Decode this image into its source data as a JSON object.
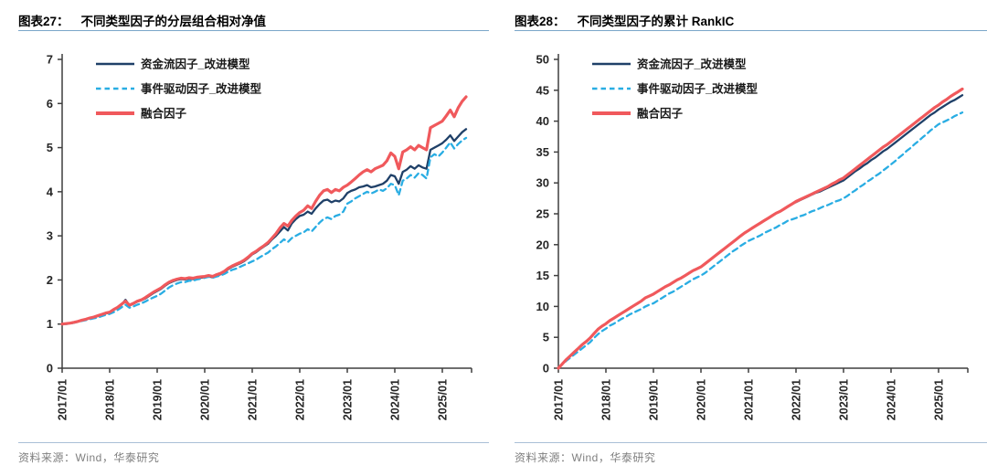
{
  "page": {
    "background": "#ffffff"
  },
  "colors": {
    "navy": "#1F4068",
    "cyan": "#29ADE3",
    "red": "#F0595C",
    "axis": "#3F3F3F",
    "rule_blue": "#7AA6C9",
    "source_gray": "#7F7F7F"
  },
  "figures": [
    {
      "title_prefix": "图表27：",
      "title": "不同类型因子的分层组合相对净值",
      "source": "资料来源：Wind，华泰研究"
    },
    {
      "title_prefix": "图表28：",
      "title": "不同类型因子的累计 RankIC",
      "source": "资料来源：Wind，华泰研究"
    }
  ],
  "chart_data": [
    {
      "type": "line",
      "title": "不同类型因子的分层组合相对净值",
      "x_start": "2017/01",
      "x_end": "2025/07",
      "x_freq": "monthly",
      "x_tick_labels": [
        "2017/01",
        "2018/01",
        "2019/01",
        "2020/01",
        "2021/01",
        "2022/01",
        "2023/01",
        "2024/01",
        "2025/01"
      ],
      "ylim": [
        0,
        7
      ],
      "ytick_step": 1,
      "grid": false,
      "legend_position": "top-left-inside",
      "series": [
        {
          "name": "资金流因子_改进模型",
          "color": "#1F4068",
          "dash": "solid",
          "values": [
            1.0,
            1.01,
            1.02,
            1.04,
            1.06,
            1.09,
            1.11,
            1.13,
            1.15,
            1.18,
            1.21,
            1.24,
            1.26,
            1.32,
            1.37,
            1.44,
            1.55,
            1.42,
            1.46,
            1.51,
            1.54,
            1.58,
            1.64,
            1.7,
            1.75,
            1.8,
            1.87,
            1.93,
            1.97,
            2.0,
            2.02,
            2.01,
            2.03,
            2.02,
            2.04,
            2.05,
            2.06,
            2.08,
            2.06,
            2.1,
            2.13,
            2.18,
            2.25,
            2.3,
            2.34,
            2.38,
            2.43,
            2.5,
            2.58,
            2.63,
            2.7,
            2.76,
            2.82,
            2.92,
            3.0,
            3.1,
            3.2,
            3.12,
            3.28,
            3.38,
            3.45,
            3.48,
            3.55,
            3.5,
            3.62,
            3.72,
            3.8,
            3.82,
            3.76,
            3.8,
            3.78,
            3.85,
            3.97,
            4.02,
            4.05,
            4.1,
            4.12,
            4.15,
            4.1,
            4.12,
            4.15,
            4.18,
            4.25,
            4.38,
            4.35,
            4.18,
            4.45,
            4.5,
            4.58,
            4.52,
            4.6,
            4.55,
            4.52,
            4.95,
            5.0,
            5.05,
            5.1,
            5.18,
            5.28,
            5.15,
            5.25,
            5.35,
            5.42
          ]
        },
        {
          "name": "事件驱动因子_改进模型",
          "color": "#29ADE3",
          "dash": "dashed",
          "values": [
            1.0,
            1.0,
            1.01,
            1.03,
            1.05,
            1.07,
            1.09,
            1.11,
            1.13,
            1.15,
            1.18,
            1.21,
            1.23,
            1.27,
            1.32,
            1.38,
            1.44,
            1.37,
            1.4,
            1.44,
            1.47,
            1.51,
            1.56,
            1.6,
            1.64,
            1.69,
            1.76,
            1.83,
            1.88,
            1.92,
            1.95,
            1.95,
            1.98,
            1.98,
            2.01,
            2.03,
            2.05,
            2.07,
            2.05,
            2.08,
            2.1,
            2.14,
            2.19,
            2.23,
            2.26,
            2.3,
            2.34,
            2.38,
            2.42,
            2.46,
            2.52,
            2.57,
            2.62,
            2.7,
            2.76,
            2.84,
            2.92,
            2.86,
            2.95,
            3.0,
            3.05,
            3.08,
            3.15,
            3.1,
            3.2,
            3.3,
            3.38,
            3.42,
            3.38,
            3.45,
            3.48,
            3.55,
            3.73,
            3.78,
            3.85,
            3.9,
            3.95,
            4.0,
            3.96,
            4.0,
            4.05,
            4.02,
            4.08,
            4.18,
            4.15,
            3.92,
            4.25,
            4.3,
            4.38,
            4.32,
            4.42,
            4.38,
            4.3,
            4.78,
            4.85,
            4.8,
            4.89,
            5.0,
            5.12,
            4.98,
            5.08,
            5.16,
            5.22
          ]
        },
        {
          "name": "融合因子",
          "color": "#F0595C",
          "dash": "solid",
          "values": [
            1.0,
            1.01,
            1.02,
            1.04,
            1.06,
            1.09,
            1.11,
            1.14,
            1.16,
            1.19,
            1.22,
            1.25,
            1.27,
            1.33,
            1.38,
            1.45,
            1.52,
            1.43,
            1.47,
            1.52,
            1.55,
            1.6,
            1.66,
            1.72,
            1.77,
            1.82,
            1.89,
            1.95,
            1.99,
            2.02,
            2.04,
            2.03,
            2.05,
            2.04,
            2.06,
            2.07,
            2.08,
            2.1,
            2.08,
            2.12,
            2.15,
            2.2,
            2.27,
            2.32,
            2.36,
            2.4,
            2.45,
            2.52,
            2.6,
            2.65,
            2.72,
            2.78,
            2.85,
            2.95,
            3.05,
            3.18,
            3.28,
            3.22,
            3.35,
            3.45,
            3.53,
            3.58,
            3.68,
            3.62,
            3.78,
            3.92,
            4.02,
            4.05,
            3.98,
            4.05,
            4.02,
            4.1,
            4.15,
            4.22,
            4.3,
            4.38,
            4.45,
            4.5,
            4.45,
            4.52,
            4.56,
            4.6,
            4.7,
            4.88,
            4.8,
            4.52,
            4.9,
            4.95,
            5.02,
            4.95,
            5.05,
            5.0,
            4.95,
            5.45,
            5.5,
            5.55,
            5.6,
            5.72,
            5.85,
            5.7,
            5.9,
            6.05,
            6.15
          ]
        }
      ]
    },
    {
      "type": "line",
      "title": "不同类型因子的累计 RankIC",
      "x_start": "2017/01",
      "x_end": "2025/07",
      "x_freq": "monthly",
      "x_tick_labels": [
        "2017/01",
        "2018/01",
        "2019/01",
        "2020/01",
        "2021/01",
        "2022/01",
        "2023/01",
        "2024/01",
        "2025/01"
      ],
      "ylim": [
        0,
        50
      ],
      "ytick_step": 5,
      "grid": false,
      "legend_position": "top-left-inside",
      "series": [
        {
          "name": "资金流因子_改进模型",
          "color": "#1F4068",
          "dash": "solid",
          "values": [
            0.0,
            0.7,
            1.4,
            2.0,
            2.6,
            3.2,
            3.8,
            4.3,
            4.9,
            5.6,
            6.3,
            6.8,
            7.2,
            7.7,
            8.1,
            8.5,
            8.9,
            9.3,
            9.7,
            10.1,
            10.5,
            10.9,
            11.4,
            11.7,
            12.0,
            12.4,
            12.8,
            13.2,
            13.5,
            13.9,
            14.3,
            14.6,
            15.0,
            15.4,
            15.8,
            16.1,
            16.4,
            16.9,
            17.4,
            17.9,
            18.4,
            18.9,
            19.4,
            19.9,
            20.4,
            20.9,
            21.4,
            21.9,
            22.3,
            22.7,
            23.1,
            23.5,
            23.9,
            24.3,
            24.7,
            25.1,
            25.4,
            25.8,
            26.2,
            26.6,
            26.9,
            27.2,
            27.5,
            27.8,
            28.1,
            28.4,
            28.6,
            28.9,
            29.2,
            29.5,
            29.8,
            30.1,
            30.4,
            30.9,
            31.4,
            31.9,
            32.3,
            32.8,
            33.2,
            33.7,
            34.1,
            34.6,
            35.1,
            35.5,
            36.0,
            36.5,
            37.0,
            37.5,
            38.0,
            38.5,
            39.0,
            39.5,
            40.0,
            40.5,
            41.0,
            41.4,
            41.9,
            42.3,
            42.7,
            43.1,
            43.4,
            43.8,
            44.2
          ]
        },
        {
          "name": "事件驱动因子_改进模型",
          "color": "#29ADE3",
          "dash": "dashed",
          "values": [
            0.0,
            0.6,
            1.2,
            1.7,
            2.2,
            2.7,
            3.2,
            3.7,
            4.2,
            4.9,
            5.5,
            6.0,
            6.4,
            6.9,
            7.2,
            7.6,
            8.0,
            8.3,
            8.7,
            9.0,
            9.3,
            9.6,
            10.0,
            10.3,
            10.5,
            10.9,
            11.3,
            11.7,
            12.1,
            12.4,
            12.8,
            13.2,
            13.6,
            14.0,
            14.4,
            14.7,
            15.0,
            15.4,
            15.9,
            16.4,
            16.9,
            17.4,
            17.9,
            18.4,
            18.9,
            19.3,
            19.8,
            20.2,
            20.6,
            20.9,
            21.2,
            21.5,
            21.9,
            22.2,
            22.5,
            22.8,
            23.2,
            23.5,
            23.9,
            24.1,
            24.3,
            24.6,
            24.8,
            25.1,
            25.4,
            25.6,
            25.9,
            26.2,
            26.4,
            26.7,
            27.0,
            27.2,
            27.5,
            27.9,
            28.4,
            28.8,
            29.3,
            29.7,
            30.2,
            30.6,
            31.1,
            31.5,
            32.0,
            32.5,
            33.0,
            33.5,
            34.1,
            34.6,
            35.2,
            35.7,
            36.3,
            36.8,
            37.4,
            37.9,
            38.5,
            39.0,
            39.5,
            39.8,
            40.1,
            40.4,
            40.8,
            41.1,
            41.4
          ]
        },
        {
          "name": "融合因子",
          "color": "#F0595C",
          "dash": "solid",
          "values": [
            0.0,
            0.7,
            1.4,
            2.0,
            2.6,
            3.2,
            3.8,
            4.3,
            4.9,
            5.6,
            6.3,
            6.8,
            7.2,
            7.7,
            8.1,
            8.5,
            8.9,
            9.3,
            9.7,
            10.1,
            10.5,
            10.9,
            11.4,
            11.7,
            12.0,
            12.4,
            12.8,
            13.2,
            13.5,
            13.9,
            14.3,
            14.6,
            15.0,
            15.4,
            15.8,
            16.1,
            16.4,
            16.9,
            17.4,
            17.9,
            18.4,
            18.9,
            19.4,
            19.9,
            20.4,
            20.9,
            21.4,
            21.9,
            22.3,
            22.7,
            23.1,
            23.5,
            23.9,
            24.3,
            24.7,
            25.1,
            25.4,
            25.8,
            26.2,
            26.6,
            27.0,
            27.3,
            27.6,
            27.9,
            28.2,
            28.5,
            28.8,
            29.1,
            29.4,
            29.8,
            30.1,
            30.5,
            30.8,
            31.3,
            31.8,
            32.3,
            32.8,
            33.3,
            33.8,
            34.3,
            34.8,
            35.3,
            35.8,
            36.2,
            36.7,
            37.2,
            37.7,
            38.2,
            38.7,
            39.2,
            39.7,
            40.2,
            40.7,
            41.2,
            41.7,
            42.2,
            42.6,
            43.1,
            43.5,
            44.0,
            44.4,
            44.8,
            45.2
          ]
        }
      ]
    }
  ]
}
